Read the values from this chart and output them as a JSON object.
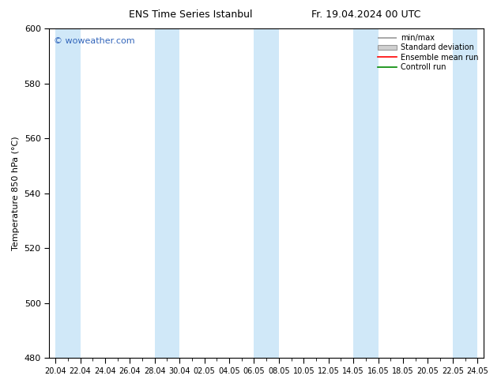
{
  "title_left": "ENS Time Series Istanbul",
  "title_right": "Fr. 19.04.2024 00 UTC",
  "ylabel": "Temperature 850 hPa (°C)",
  "ylim": [
    480,
    600
  ],
  "yticks": [
    480,
    500,
    520,
    540,
    560,
    580,
    600
  ],
  "xtick_labels": [
    "20.04",
    "22.04",
    "24.04",
    "26.04",
    "28.04",
    "30.04",
    "02.05",
    "04.05",
    "06.05",
    "08.05",
    "10.05",
    "12.05",
    "14.05",
    "16.05",
    "18.05",
    "20.05",
    "22.05",
    "24.05"
  ],
  "shaded_band_color": "#d0e8f8",
  "watermark": "© woweather.com",
  "watermark_color": "#3366bb",
  "legend_labels": [
    "min/max",
    "Standard deviation",
    "Ensemble mean run",
    "Controll run"
  ],
  "legend_colors": [
    "#aaaaaa",
    "#cccccc",
    "#ff0000",
    "#008800"
  ],
  "background_color": "#ffffff",
  "plot_bg_color": "#ffffff",
  "figwidth": 6.34,
  "figheight": 4.9,
  "dpi": 100
}
